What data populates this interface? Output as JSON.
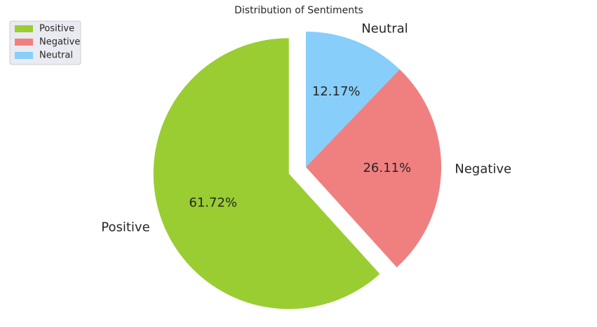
{
  "chart_data": {
    "type": "pie",
    "title": "Distribution of Sentiments",
    "categories": [
      "Positive",
      "Negative",
      "Neutral"
    ],
    "values": [
      61.72,
      26.11,
      12.17
    ],
    "percent_labels": [
      "61.72%",
      "26.11%",
      "12.17%"
    ],
    "colors": [
      "#9acd32",
      "#f08080",
      "#87cefa"
    ],
    "exploded": [
      true,
      false,
      false
    ],
    "legend": {
      "entries": [
        "Positive",
        "Negative",
        "Neutral"
      ],
      "placement": "top-left"
    }
  }
}
